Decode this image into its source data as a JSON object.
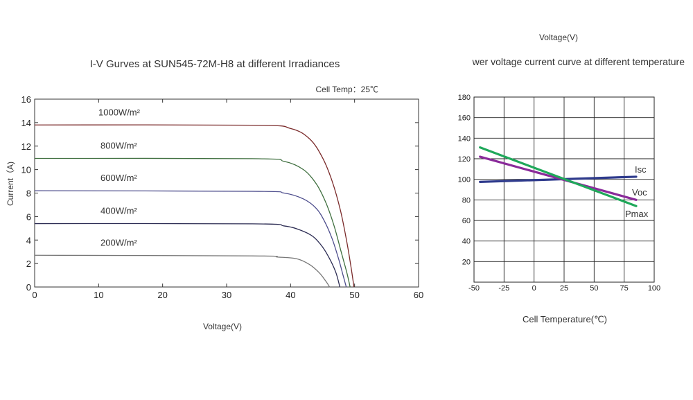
{
  "chart_data": [
    {
      "type": "line",
      "title": "I-V Gurves at SUN545-72M-H8 at different Irradiances",
      "subtitle": "Cell Temp：25℃",
      "xlabel": "Voltage(V)",
      "ylabel": "Current（A)",
      "xlim": [
        0,
        60
      ],
      "ylim": [
        0,
        16
      ],
      "x_ticks": [
        "0",
        "10",
        "20",
        "30",
        "40",
        "50",
        "60"
      ],
      "y_ticks": [
        "0",
        "2",
        "4",
        "6",
        "8",
        "10",
        "12",
        "14",
        "16"
      ],
      "grid": false,
      "colors": [
        "#7a2a2a",
        "#3f6f3f",
        "#4d4d8c",
        "#2b2b52",
        "#777777"
      ],
      "series": [
        {
          "name": "1000W/m²",
          "x": [
            0,
            34,
            40,
            43,
            45,
            46.5,
            47.8,
            48.8,
            49.5,
            49.9
          ],
          "y": [
            13.8,
            13.78,
            13.5,
            12.6,
            11.0,
            9.0,
            6.5,
            3.8,
            1.5,
            0
          ]
        },
        {
          "name": "800W/m²",
          "x": [
            0,
            34,
            39,
            42,
            44,
            45.5,
            46.8,
            47.9,
            48.8,
            49.3
          ],
          "y": [
            10.95,
            10.93,
            10.7,
            10.0,
            8.8,
            7.2,
            5.2,
            3.0,
            1.2,
            0
          ]
        },
        {
          "name": "600W/m²",
          "x": [
            0,
            34,
            39,
            42,
            44,
            45.3,
            46.5,
            47.5,
            48.2,
            48.7
          ],
          "y": [
            8.2,
            8.15,
            8.0,
            7.5,
            6.7,
            5.6,
            4.1,
            2.4,
            1.0,
            0
          ]
        },
        {
          "name": "400W/m²",
          "x": [
            0,
            34,
            39,
            41.5,
            43.5,
            45,
            46.2,
            47.1,
            47.7
          ],
          "y": [
            5.4,
            5.38,
            5.2,
            4.85,
            4.3,
            3.4,
            2.3,
            1.2,
            0
          ]
        },
        {
          "name": "200W/m²",
          "x": [
            0,
            34,
            38,
            41,
            43,
            44.5,
            45.5,
            46.1
          ],
          "y": [
            2.7,
            2.65,
            2.55,
            2.4,
            1.9,
            1.2,
            0.5,
            0
          ]
        }
      ]
    },
    {
      "type": "line",
      "title": "wer voltage current curve at different temperature",
      "top_label": "Voltage(V)",
      "xlabel": "Cell Temperature(℃)",
      "ylabel": "",
      "xlim": [
        -50,
        100
      ],
      "ylim": [
        0,
        180
      ],
      "x_ticks": [
        "-50",
        "-25",
        "0",
        "25",
        "50",
        "75",
        "100"
      ],
      "y_ticks": [
        "20",
        "40",
        "60",
        "80",
        "100",
        "120",
        "140",
        "160",
        "180"
      ],
      "grid": true,
      "colors": [
        "#2e3a8c",
        "#8a2a9a",
        "#1fa85a"
      ],
      "series": [
        {
          "name": "Isc",
          "x": [
            -45,
            85
          ],
          "y": [
            97.5,
            102.5
          ]
        },
        {
          "name": "Voc",
          "x": [
            -45,
            85
          ],
          "y": [
            122,
            80
          ]
        },
        {
          "name": "Pmax",
          "x": [
            -45,
            85
          ],
          "y": [
            131,
            74
          ]
        }
      ]
    }
  ]
}
